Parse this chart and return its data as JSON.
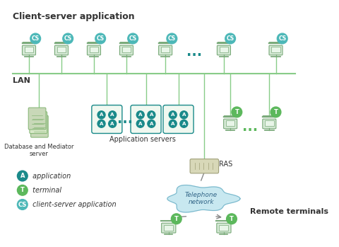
{
  "bg_color": "#ffffff",
  "teal": "#1a8a8a",
  "light_teal": "#4db8b8",
  "green": "#5cb85c",
  "box_fill": "#f0f8f0",
  "cloud_fill": "#c8e8f0",
  "cloud_edge": "#7ab8cc",
  "ras_fill": "#d8d8b8",
  "lan_line": "#88cc88",
  "cs_badge_color": "#4db8b8",
  "a_badge_color": "#1a8a8a",
  "t_badge_color": "#5cb85c",
  "text_dark": "#333333",
  "legend_items": [
    {
      "badge": "A",
      "color": "#1a8a8a",
      "text": " application"
    },
    {
      "badge": "T",
      "color": "#5cb85c",
      "text": " terminal"
    },
    {
      "badge": "CS",
      "color": "#4db8b8",
      "text": " client-server application"
    }
  ]
}
